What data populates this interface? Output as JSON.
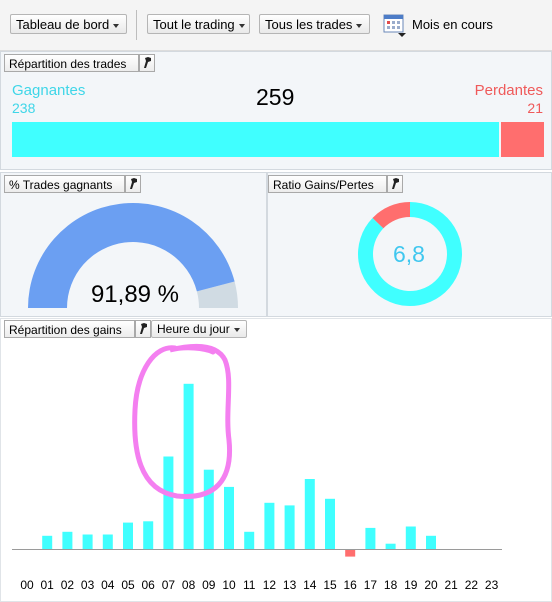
{
  "toolbar": {
    "dashboard": "Tableau de bord",
    "trading": "Tout le trading",
    "trades": "Tous les trades",
    "period": "Mois en cours"
  },
  "distribution": {
    "title": "Répartition des trades",
    "wins_label": "Gagnantes",
    "wins": "238",
    "total": "259",
    "losses_label": "Perdantes",
    "losses": "21"
  },
  "win_rate": {
    "title": "% Trades gagnants",
    "value_text": "91,89 %",
    "fraction": 0.9189
  },
  "ratio": {
    "title": "Ratio Gains/Pertes",
    "value_text": "6,8"
  },
  "gains": {
    "title": "Répartition des gains",
    "grouping": "Heure du jour"
  },
  "colors": {
    "win": "#40ffff",
    "loss": "#ff6e6e",
    "gauge": "#6b9ff2",
    "gauge_rest": "#d0dbe3",
    "annotation": "#f47ff0"
  },
  "chart_data": {
    "type": "bar",
    "categories": [
      "00",
      "01",
      "02",
      "03",
      "04",
      "05",
      "06",
      "07",
      "08",
      "09",
      "10",
      "11",
      "12",
      "13",
      "14",
      "15",
      "16",
      "17",
      "18",
      "19",
      "20",
      "21",
      "22",
      "23"
    ],
    "values": [
      0,
      1.0,
      1.3,
      1.1,
      1.1,
      2.0,
      2.1,
      7.0,
      12.5,
      6.0,
      4.7,
      1.3,
      3.5,
      3.3,
      5.3,
      3.8,
      -0.5,
      1.6,
      0.4,
      1.7,
      1.0,
      0,
      0,
      0
    ],
    "title": "",
    "xlabel": "",
    "ylabel": "",
    "ylim": [
      -1,
      14
    ],
    "grid": false
  }
}
